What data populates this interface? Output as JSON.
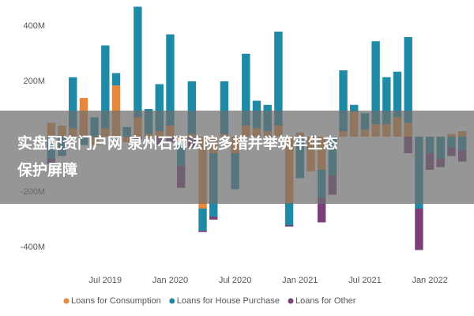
{
  "chart_data": {
    "type": "bar",
    "stacked": true,
    "categories": [
      null,
      null,
      null,
      null,
      null,
      "Jul 2019",
      null,
      null,
      null,
      null,
      null,
      "Jan 2020",
      null,
      null,
      null,
      null,
      null,
      "Jul 2020",
      null,
      null,
      null,
      null,
      null,
      "Jan 2021",
      null,
      null,
      null,
      null,
      null,
      "Jul 2021",
      null,
      null,
      null,
      null,
      null,
      "Jan 2022",
      null,
      null,
      null
    ],
    "series": [
      {
        "name": "Loans for Consumption",
        "color": "#e8883a",
        "values": [
          50,
          40,
          30,
          140,
          -30,
          30,
          185,
          -20,
          70,
          10,
          20,
          40,
          -15,
          10,
          -260,
          -60,
          10,
          -60,
          40,
          30,
          20,
          40,
          -240,
          15,
          -125,
          -120,
          0,
          20,
          90,
          25,
          45,
          45,
          70,
          50,
          0,
          0,
          0,
          10,
          20
        ]
      },
      {
        "name": "Loans for House Purchase",
        "color": "#1f8aa6",
        "values": [
          -80,
          -70,
          185,
          -30,
          70,
          300,
          45,
          35,
          400,
          90,
          170,
          330,
          -90,
          190,
          -80,
          -230,
          190,
          -130,
          260,
          100,
          95,
          340,
          -80,
          -150,
          0,
          -100,
          -140,
          220,
          25,
          60,
          300,
          170,
          165,
          310,
          -260,
          -60,
          -80,
          -40,
          -50
        ]
      },
      {
        "name": "Loans for Other",
        "color": "#7b3f7a",
        "values": [
          -20,
          0,
          0,
          0,
          0,
          0,
          0,
          0,
          -10,
          0,
          -30,
          -20,
          -80,
          -40,
          -5,
          -10,
          0,
          0,
          0,
          0,
          0,
          0,
          -5,
          0,
          0,
          -90,
          -70,
          0,
          0,
          0,
          0,
          0,
          0,
          -60,
          -150,
          -60,
          -30,
          -30,
          -40
        ]
      }
    ],
    "ylim": [
      -440,
      480
    ],
    "yticks": [
      {
        "value": -400,
        "label": "-400M"
      },
      {
        "value": -200,
        "label": "-200M"
      },
      {
        "value": 200,
        "label": "200M"
      },
      {
        "value": 400,
        "label": "400M"
      }
    ],
    "grid": false
  },
  "overlay_text": [
    "实盘配资门户网 泉州石狮法院多措并举筑牢生态",
    "保护屏障"
  ]
}
